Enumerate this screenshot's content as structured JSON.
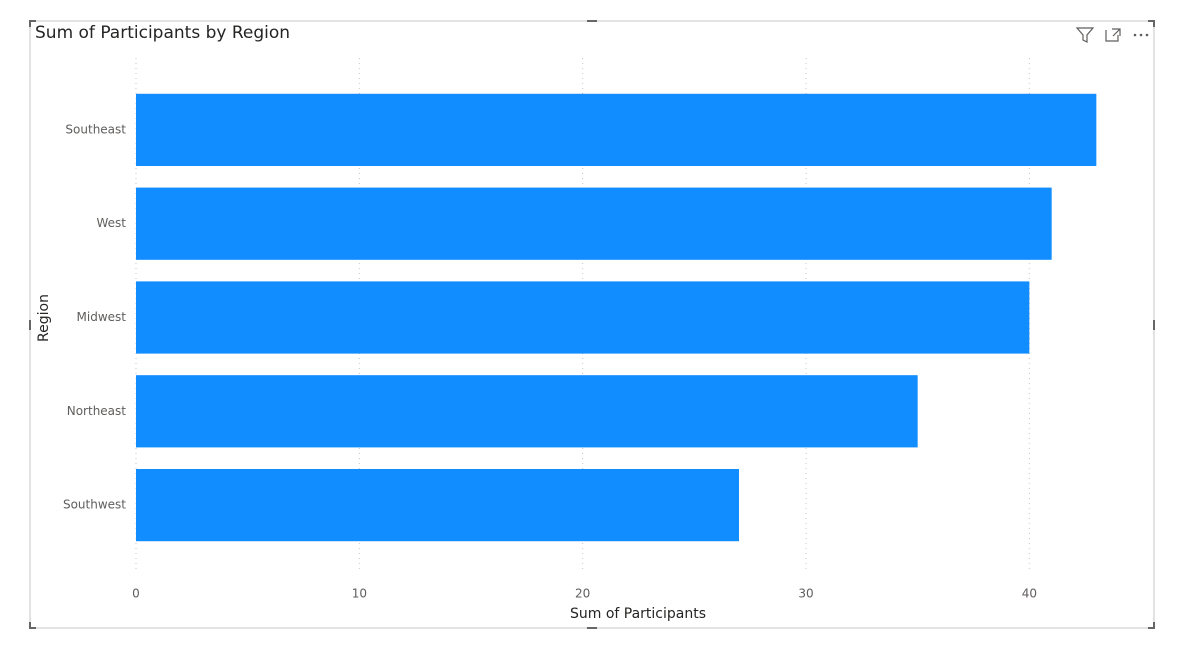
{
  "chart_data": {
    "type": "bar",
    "orientation": "horizontal",
    "title": "Sum of Participants by Region",
    "x_label": "Sum of Participants",
    "y_label": "Region",
    "categories": [
      "Southeast",
      "West",
      "Midwest",
      "Northeast",
      "Southwest"
    ],
    "values": [
      43,
      41,
      40,
      35,
      27
    ],
    "color": "#118dff",
    "xlim": [
      0,
      45
    ],
    "xticks": [
      0,
      10,
      20,
      30,
      40
    ],
    "grid": true
  }
}
